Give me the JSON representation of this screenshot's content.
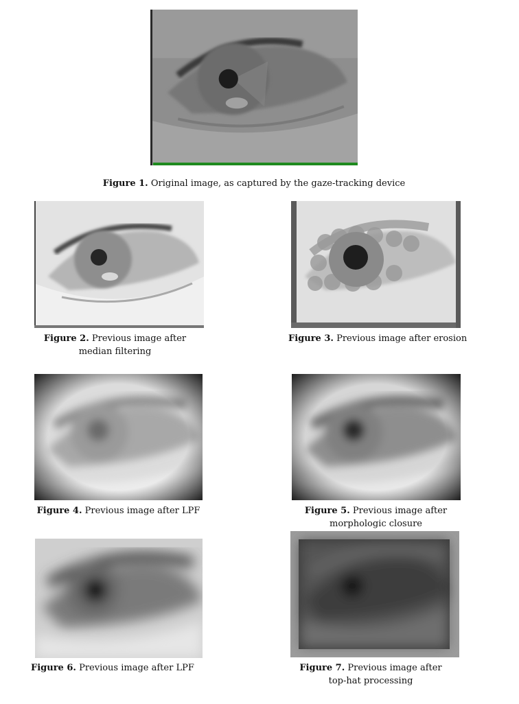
{
  "figures": [
    {
      "label": "Figure 1.",
      "text": "Original image, as captured by the gaze-tracking device"
    },
    {
      "label": "Figure 2.",
      "text_line1": "Previous image after",
      "text_line2": "median filtering"
    },
    {
      "label": "Figure 3.",
      "text": "Previous image after erosion"
    },
    {
      "label": "Figure 4.",
      "text": "Previous image after LPF"
    },
    {
      "label": "Figure 5.",
      "text_line1": "Previous image after",
      "text_line2": "morphologic closure"
    },
    {
      "label": "Figure 6.",
      "text": "Previous image after LPF"
    },
    {
      "label": "Figure 7.",
      "text_line1": "Previous image after",
      "text_line2": "top-hat processing"
    }
  ]
}
